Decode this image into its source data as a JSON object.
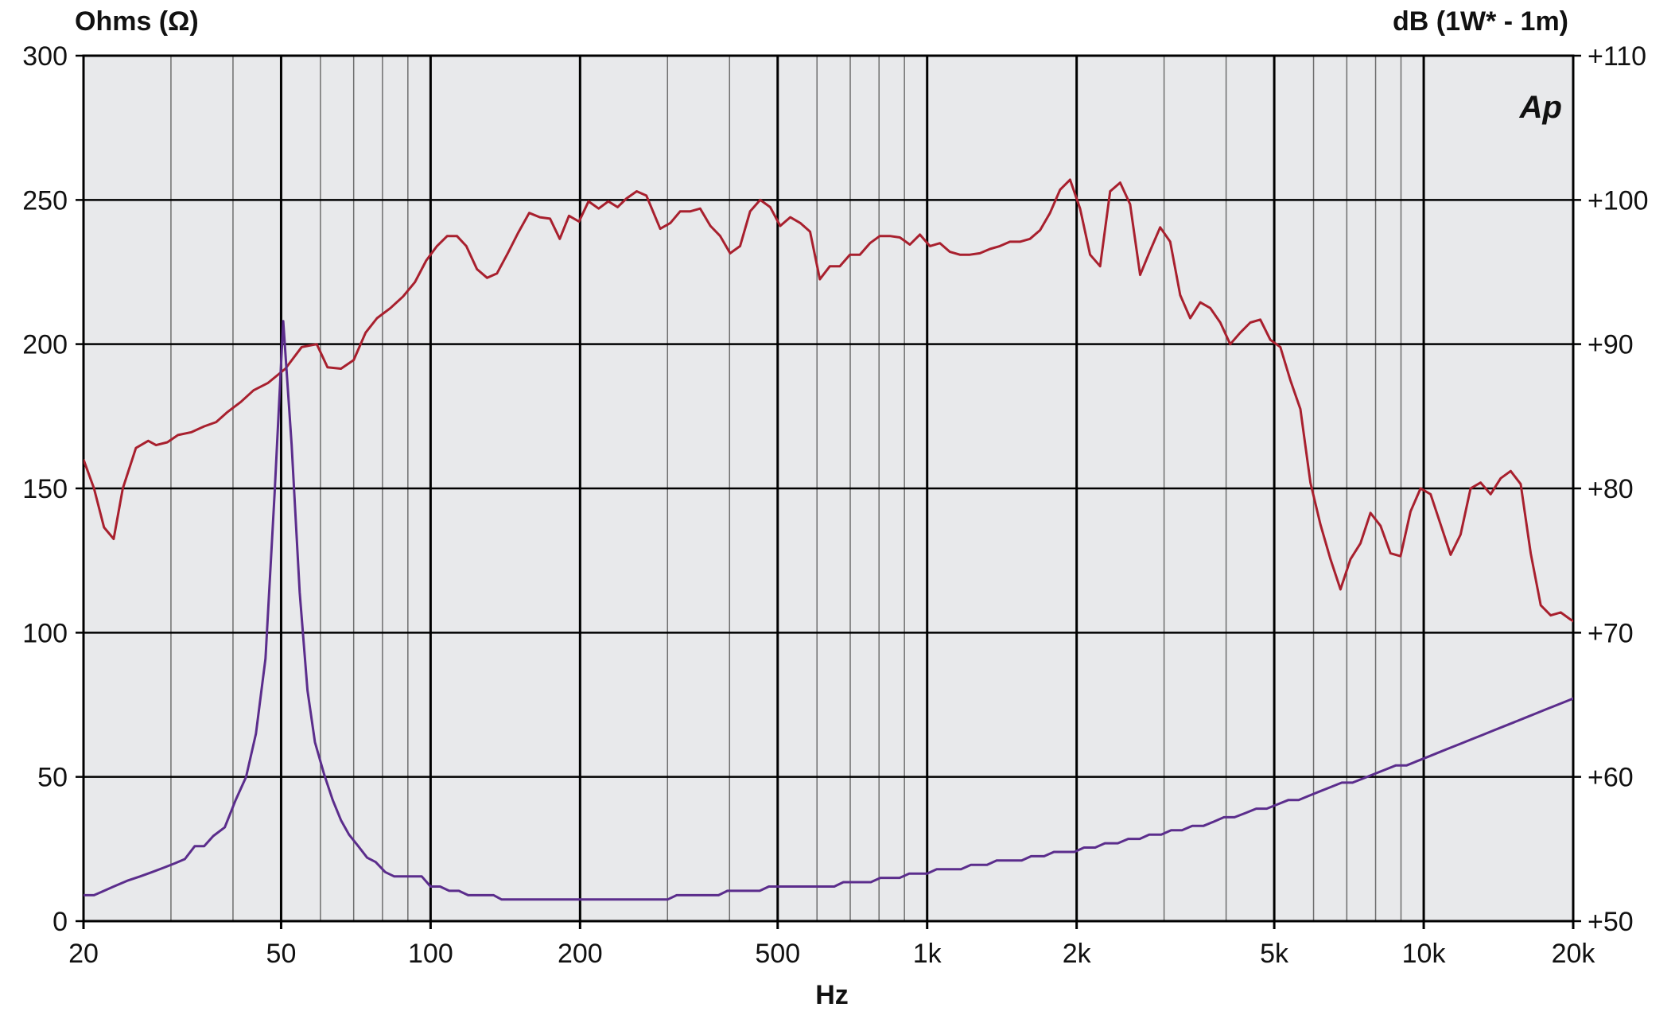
{
  "chart_data": {
    "type": "line",
    "x_scale": "log",
    "x_range": [
      20,
      20000
    ],
    "xlabel": "Hz",
    "ylabel_left": "Ohms (Ω)",
    "ylabel_right": "dB (1W* - 1m)",
    "y_left_range": [
      0,
      300
    ],
    "y_right_range": [
      50,
      110
    ],
    "grid": true,
    "logo_text": "Ap",
    "x_ticks": [
      {
        "value": 20,
        "label": "20"
      },
      {
        "value": 50,
        "label": "50"
      },
      {
        "value": 100,
        "label": "100"
      },
      {
        "value": 200,
        "label": "200"
      },
      {
        "value": 500,
        "label": "500"
      },
      {
        "value": 1000,
        "label": "1k"
      },
      {
        "value": 2000,
        "label": "2k"
      },
      {
        "value": 5000,
        "label": "5k"
      },
      {
        "value": 10000,
        "label": "10k"
      },
      {
        "value": 20000,
        "label": "20k"
      }
    ],
    "y_left_ticks": [
      {
        "value": 0,
        "label": "0"
      },
      {
        "value": 50,
        "label": "50"
      },
      {
        "value": 100,
        "label": "100"
      },
      {
        "value": 150,
        "label": "150"
      },
      {
        "value": 200,
        "label": "200"
      },
      {
        "value": 250,
        "label": "250"
      },
      {
        "value": 300,
        "label": "300"
      }
    ],
    "y_right_ticks": [
      {
        "value": 50,
        "label": "+50"
      },
      {
        "value": 60,
        "label": "+60"
      },
      {
        "value": 70,
        "label": "+70"
      },
      {
        "value": 80,
        "label": "+80"
      },
      {
        "value": 90,
        "label": "+90"
      },
      {
        "value": 100,
        "label": "+100"
      },
      {
        "value": 110,
        "label": "+110"
      }
    ],
    "series": [
      {
        "key": "spl",
        "axis": "right",
        "color": "#a8202e",
        "points": [
          [
            20,
            82
          ],
          [
            21,
            80
          ],
          [
            22,
            77.3
          ],
          [
            23,
            76.5
          ],
          [
            24,
            80
          ],
          [
            25.5,
            82.8
          ],
          [
            27,
            83.3
          ],
          [
            28,
            83
          ],
          [
            29.5,
            83.2
          ],
          [
            31,
            83.7
          ],
          [
            33,
            83.9
          ],
          [
            35,
            84.3
          ],
          [
            37,
            84.6
          ],
          [
            39,
            85.3
          ],
          [
            41.5,
            86
          ],
          [
            44,
            86.8
          ],
          [
            47,
            87.3
          ],
          [
            51,
            88.3
          ],
          [
            55,
            89.8
          ],
          [
            59,
            90
          ],
          [
            62,
            88.4
          ],
          [
            66,
            88.3
          ],
          [
            70,
            88.9
          ],
          [
            74,
            90.8
          ],
          [
            78,
            91.8
          ],
          [
            83,
            92.5
          ],
          [
            88,
            93.3
          ],
          [
            93,
            94.3
          ],
          [
            98,
            95.8
          ],
          [
            103,
            96.8
          ],
          [
            108,
            97.5
          ],
          [
            113,
            97.5
          ],
          [
            118,
            96.8
          ],
          [
            124,
            95.2
          ],
          [
            130,
            94.6
          ],
          [
            136,
            94.9
          ],
          [
            143,
            96.3
          ],
          [
            150,
            97.7
          ],
          [
            158,
            99.1
          ],
          [
            166,
            98.8
          ],
          [
            174,
            98.7
          ],
          [
            182,
            97.3
          ],
          [
            190,
            98.9
          ],
          [
            199,
            98.5
          ],
          [
            208,
            99.9
          ],
          [
            218,
            99.4
          ],
          [
            228,
            99.9
          ],
          [
            238,
            99.5
          ],
          [
            248,
            100.1
          ],
          [
            260,
            100.6
          ],
          [
            272,
            100.3
          ],
          [
            290,
            98
          ],
          [
            304,
            98.4
          ],
          [
            318,
            99.2
          ],
          [
            333,
            99.2
          ],
          [
            349,
            99.4
          ],
          [
            366,
            98.2
          ],
          [
            383,
            97.5
          ],
          [
            401,
            96.3
          ],
          [
            420,
            96.8
          ],
          [
            440,
            99.2
          ],
          [
            461,
            100
          ],
          [
            483,
            99.5
          ],
          [
            506,
            98.2
          ],
          [
            530,
            98.8
          ],
          [
            555,
            98.4
          ],
          [
            581,
            97.8
          ],
          [
            608,
            94.5
          ],
          [
            637,
            95.4
          ],
          [
            667,
            95.4
          ],
          [
            699,
            96.2
          ],
          [
            732,
            96.2
          ],
          [
            767,
            97
          ],
          [
            803,
            97.5
          ],
          [
            841,
            97.5
          ],
          [
            881,
            97.4
          ],
          [
            923,
            96.9
          ],
          [
            967,
            97.6
          ],
          [
            1013,
            96.8
          ],
          [
            1061,
            97
          ],
          [
            1111,
            96.4
          ],
          [
            1164,
            96.2
          ],
          [
            1219,
            96.2
          ],
          [
            1277,
            96.3
          ],
          [
            1338,
            96.6
          ],
          [
            1401,
            96.8
          ],
          [
            1468,
            97.1
          ],
          [
            1538,
            97.1
          ],
          [
            1611,
            97.3
          ],
          [
            1688,
            97.9
          ],
          [
            1768,
            99.1
          ],
          [
            1852,
            100.7
          ],
          [
            1940,
            101.4
          ],
          [
            2032,
            99.4
          ],
          [
            2129,
            96.2
          ],
          [
            2230,
            95.4
          ],
          [
            2336,
            100.6
          ],
          [
            2447,
            101.2
          ],
          [
            2563,
            99.7
          ],
          [
            2685,
            94.8
          ],
          [
            2813,
            96.5
          ],
          [
            2946,
            98.1
          ],
          [
            3086,
            97.1
          ],
          [
            3233,
            93.4
          ],
          [
            3387,
            91.8
          ],
          [
            3548,
            92.9
          ],
          [
            3717,
            92.5
          ],
          [
            3893,
            91.5
          ],
          [
            4078,
            90
          ],
          [
            4272,
            90.8
          ],
          [
            4475,
            91.5
          ],
          [
            4688,
            91.7
          ],
          [
            4911,
            90.3
          ],
          [
            5144,
            89.8
          ],
          [
            5389,
            87.5
          ],
          [
            5645,
            85.5
          ],
          [
            5913,
            80.4
          ],
          [
            6194,
            77.5
          ],
          [
            6489,
            75.1
          ],
          [
            6797,
            73
          ],
          [
            7121,
            75.1
          ],
          [
            7459,
            76.2
          ],
          [
            7813,
            78.3
          ],
          [
            8185,
            77.4
          ],
          [
            8574,
            75.5
          ],
          [
            8981,
            75.3
          ],
          [
            9408,
            78.4
          ],
          [
            9855,
            80
          ],
          [
            10323,
            79.6
          ],
          [
            10814,
            77.5
          ],
          [
            11328,
            75.4
          ],
          [
            11866,
            76.8
          ],
          [
            12430,
            80
          ],
          [
            13021,
            80.4
          ],
          [
            13640,
            79.6
          ],
          [
            14288,
            80.7
          ],
          [
            14967,
            81.2
          ],
          [
            15678,
            80.3
          ],
          [
            16423,
            75.5
          ],
          [
            17203,
            71.9
          ],
          [
            18021,
            71.2
          ],
          [
            18877,
            71.4
          ],
          [
            19775,
            70.9
          ],
          [
            20715,
            70.5
          ],
          [
            21200,
            65.5
          ],
          [
            21600,
            67
          ]
        ]
      },
      {
        "key": "impedance",
        "axis": "left",
        "color": "#5b2d8c",
        "points": [
          [
            20,
            9
          ],
          [
            21,
            9
          ],
          [
            22,
            10.5
          ],
          [
            23,
            12
          ],
          [
            24.5,
            14
          ],
          [
            26,
            15.5
          ],
          [
            27.5,
            17
          ],
          [
            29,
            18.5
          ],
          [
            30.5,
            20
          ],
          [
            32,
            21.5
          ],
          [
            33.5,
            26
          ],
          [
            35,
            26
          ],
          [
            36.5,
            29.5
          ],
          [
            38.5,
            32.5
          ],
          [
            40.5,
            42
          ],
          [
            42.5,
            50
          ],
          [
            44.5,
            65
          ],
          [
            46.5,
            91
          ],
          [
            48.5,
            148
          ],
          [
            50.5,
            208
          ],
          [
            52.5,
            165
          ],
          [
            54.5,
            114
          ],
          [
            56.5,
            80
          ],
          [
            58.5,
            62
          ],
          [
            61,
            51
          ],
          [
            63.5,
            42
          ],
          [
            66,
            35
          ],
          [
            68.5,
            30
          ],
          [
            71.5,
            26
          ],
          [
            74.5,
            22
          ],
          [
            77.5,
            20.5
          ],
          [
            81,
            17
          ],
          [
            84.5,
            15.5
          ],
          [
            88,
            15.5
          ],
          [
            92,
            15.5
          ],
          [
            96,
            15.5
          ],
          [
            100,
            12
          ],
          [
            104.5,
            12
          ],
          [
            109,
            10.5
          ],
          [
            114,
            10.5
          ],
          [
            119,
            9
          ],
          [
            124,
            9
          ],
          [
            134,
            9
          ],
          [
            139,
            7.5
          ],
          [
            170,
            7.5
          ],
          [
            250,
            7.5
          ],
          [
            300,
            7.5
          ],
          [
            313,
            9
          ],
          [
            380,
            9
          ],
          [
            396,
            10.5
          ],
          [
            460,
            10.5
          ],
          [
            480,
            12
          ],
          [
            650,
            12
          ],
          [
            678,
            13.5
          ],
          [
            770,
            13.5
          ],
          [
            805,
            15
          ],
          [
            880,
            15
          ],
          [
            920,
            16.5
          ],
          [
            1000,
            16.5
          ],
          [
            1045,
            18
          ],
          [
            1170,
            18
          ],
          [
            1225,
            19.5
          ],
          [
            1320,
            19.5
          ],
          [
            1380,
            21
          ],
          [
            1550,
            21
          ],
          [
            1620,
            22.5
          ],
          [
            1720,
            22.5
          ],
          [
            1800,
            24
          ],
          [
            1980,
            24
          ],
          [
            2070,
            25.5
          ],
          [
            2180,
            25.5
          ],
          [
            2280,
            27
          ],
          [
            2420,
            27
          ],
          [
            2540,
            28.5
          ],
          [
            2680,
            28.5
          ],
          [
            2800,
            30
          ],
          [
            2960,
            30
          ],
          [
            3100,
            31.5
          ],
          [
            3260,
            31.5
          ],
          [
            3420,
            33
          ],
          [
            3600,
            33
          ],
          [
            3780,
            34.5
          ],
          [
            3960,
            36
          ],
          [
            4160,
            36
          ],
          [
            4380,
            37.5
          ],
          [
            4600,
            39
          ],
          [
            4830,
            39
          ],
          [
            5080,
            40.5
          ],
          [
            5340,
            42
          ],
          [
            5600,
            42
          ],
          [
            5880,
            43.5
          ],
          [
            6180,
            45
          ],
          [
            6500,
            46.5
          ],
          [
            6840,
            48
          ],
          [
            7190,
            48
          ],
          [
            7560,
            49.5
          ],
          [
            7950,
            51
          ],
          [
            8360,
            52.5
          ],
          [
            8790,
            54
          ],
          [
            9240,
            54
          ],
          [
            9710,
            55.5
          ],
          [
            10210,
            57
          ],
          [
            10730,
            58.5
          ],
          [
            11280,
            60
          ],
          [
            11860,
            61.5
          ],
          [
            12470,
            63
          ],
          [
            13110,
            64.5
          ],
          [
            13780,
            66
          ],
          [
            14490,
            67.5
          ],
          [
            15230,
            69
          ],
          [
            16010,
            70.5
          ],
          [
            16830,
            72
          ],
          [
            17690,
            73.5
          ],
          [
            18600,
            75
          ],
          [
            19550,
            76.5
          ],
          [
            20550,
            78
          ],
          [
            21600,
            79.5
          ],
          [
            22700,
            82
          ],
          [
            23860,
            84
          ],
          [
            25080,
            85.5
          ],
          [
            26370,
            87
          ],
          [
            27720,
            88
          ]
        ]
      }
    ]
  }
}
